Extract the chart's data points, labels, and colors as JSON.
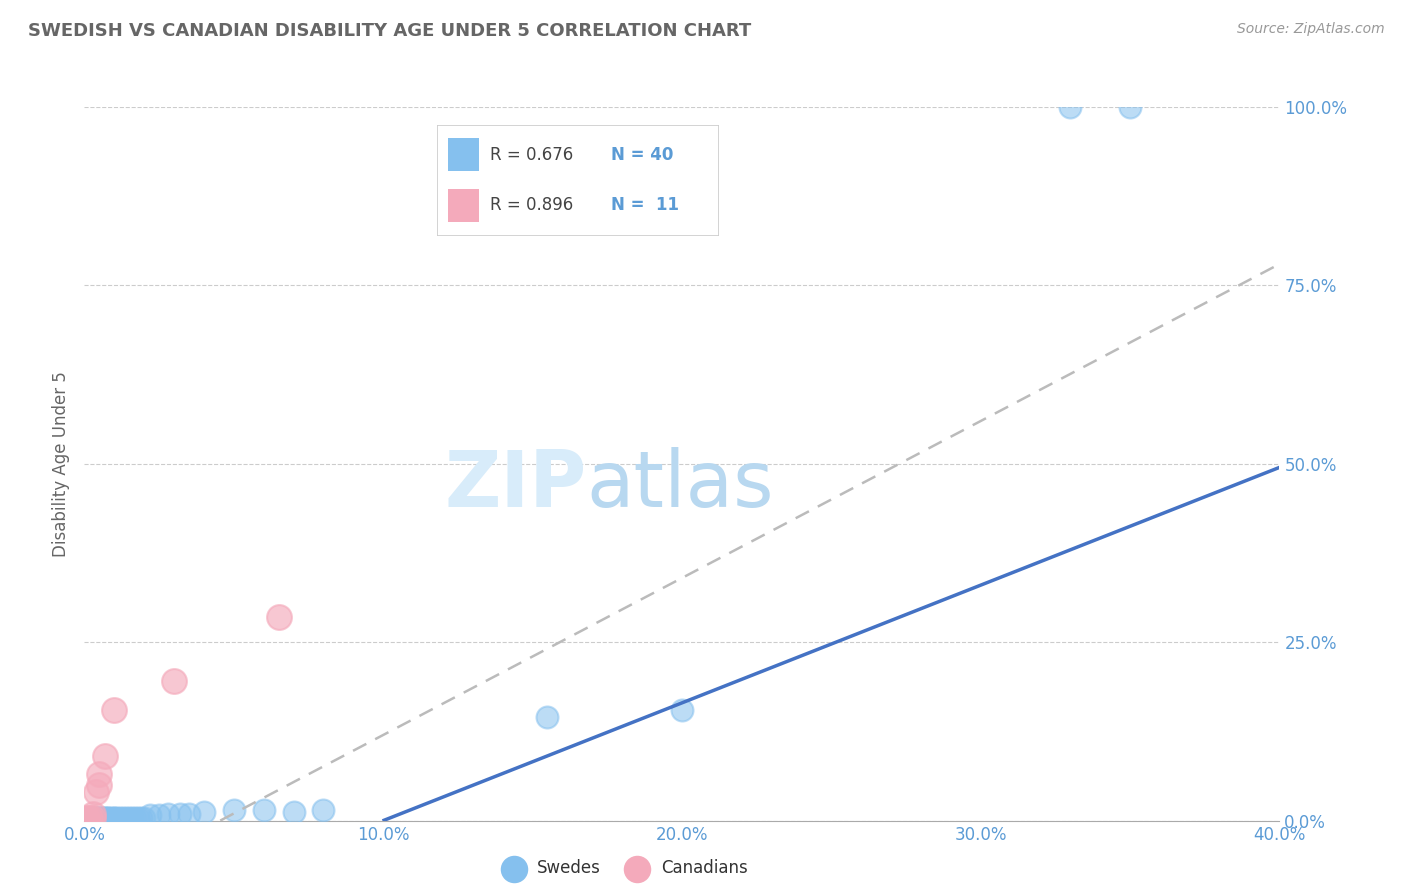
{
  "title": "SWEDISH VS CANADIAN DISABILITY AGE UNDER 5 CORRELATION CHART",
  "source_text": "Source: ZipAtlas.com",
  "ylabel": "Disability Age Under 5",
  "xlim": [
    0.0,
    0.4
  ],
  "ylim": [
    0.0,
    1.0
  ],
  "xtick_labels": [
    "0.0%",
    "",
    "10.0%",
    "",
    "20.0%",
    "",
    "30.0%",
    "",
    "40.0%"
  ],
  "xtick_vals": [
    0.0,
    0.05,
    0.1,
    0.15,
    0.2,
    0.25,
    0.3,
    0.35,
    0.4
  ],
  "ytick_labels": [
    "0.0%",
    "25.0%",
    "50.0%",
    "75.0%",
    "100.0%"
  ],
  "ytick_vals": [
    0.0,
    0.25,
    0.5,
    0.75,
    1.0
  ],
  "swedes_R": 0.676,
  "swedes_N": 40,
  "canadians_R": 0.896,
  "canadians_N": 11,
  "swedish_color": "#85C0EE",
  "canadian_color": "#F4AABB",
  "swedish_line_color": "#4472C4",
  "canadian_line_color": "#BBBBBB",
  "background_color": "#FFFFFF",
  "grid_color": "#CCCCCC",
  "title_color": "#666666",
  "axis_label_color": "#5B9BD5",
  "legend_R_color": "#5B9BD5",
  "watermark_color": "#D8ECFA",
  "swedes_x": [
    0.001,
    0.002,
    0.003,
    0.004,
    0.004,
    0.005,
    0.005,
    0.006,
    0.006,
    0.007,
    0.007,
    0.008,
    0.008,
    0.009,
    0.01,
    0.01,
    0.011,
    0.012,
    0.013,
    0.014,
    0.015,
    0.016,
    0.017,
    0.018,
    0.019,
    0.02,
    0.022,
    0.025,
    0.028,
    0.032,
    0.035,
    0.04,
    0.05,
    0.06,
    0.07,
    0.08,
    0.155,
    0.2,
    0.33,
    0.35
  ],
  "swedes_y": [
    0.003,
    0.003,
    0.003,
    0.003,
    0.003,
    0.003,
    0.003,
    0.003,
    0.003,
    0.003,
    0.003,
    0.003,
    0.003,
    0.003,
    0.003,
    0.003,
    0.003,
    0.003,
    0.003,
    0.003,
    0.003,
    0.003,
    0.003,
    0.003,
    0.003,
    0.003,
    0.008,
    0.008,
    0.01,
    0.01,
    0.01,
    0.012,
    0.015,
    0.015,
    0.012,
    0.015,
    0.145,
    0.155,
    1.0,
    1.0
  ],
  "canadians_x": [
    0.001,
    0.002,
    0.003,
    0.003,
    0.004,
    0.005,
    0.005,
    0.007,
    0.01,
    0.03,
    0.065
  ],
  "canadians_y": [
    0.003,
    0.003,
    0.003,
    0.01,
    0.04,
    0.05,
    0.065,
    0.09,
    0.155,
    0.195,
    0.285
  ]
}
